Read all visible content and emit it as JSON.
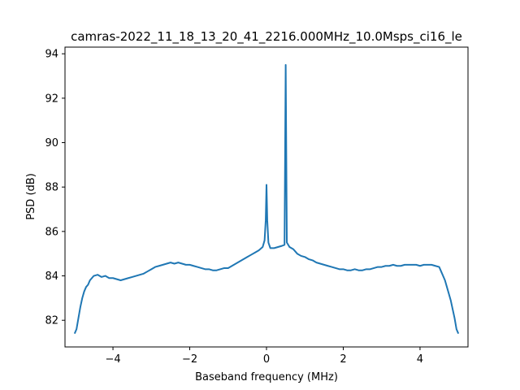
{
  "chart_data": {
    "type": "line",
    "title": "camras-2022_11_18_13_20_41_2216.000MHz_10.0Msps_ci16_le",
    "xlabel": "Baseband frequency (MHz)",
    "ylabel": "PSD (dB)",
    "xlim": [
      -5.25,
      5.25
    ],
    "ylim": [
      80.8,
      94.3
    ],
    "xticks": [
      -4,
      -2,
      0,
      2,
      4
    ],
    "xtick_labels": [
      "−4",
      "−2",
      "0",
      "2",
      "4"
    ],
    "yticks": [
      82,
      84,
      86,
      88,
      90,
      92,
      94
    ],
    "ytick_labels": [
      "82",
      "84",
      "86",
      "88",
      "90",
      "92",
      "94"
    ],
    "grid": false,
    "legend": false,
    "line_color": "#1f77b4",
    "series": [
      {
        "x": [
          -5.0,
          -4.95,
          -4.9,
          -4.85,
          -4.8,
          -4.75,
          -4.7,
          -4.65,
          -4.6,
          -4.55,
          -4.5,
          -4.4,
          -4.3,
          -4.2,
          -4.1,
          -4.0,
          -3.9,
          -3.8,
          -3.7,
          -3.6,
          -3.5,
          -3.4,
          -3.3,
          -3.2,
          -3.1,
          -3.0,
          -2.9,
          -2.8,
          -2.7,
          -2.6,
          -2.5,
          -2.4,
          -2.3,
          -2.2,
          -2.1,
          -2.0,
          -1.9,
          -1.8,
          -1.7,
          -1.6,
          -1.5,
          -1.4,
          -1.3,
          -1.2,
          -1.1,
          -1.0,
          -0.9,
          -0.8,
          -0.7,
          -0.6,
          -0.5,
          -0.4,
          -0.3,
          -0.2,
          -0.1,
          -0.05,
          -0.02,
          0.0,
          0.02,
          0.05,
          0.1,
          0.2,
          0.3,
          0.4,
          0.47,
          0.5,
          0.53,
          0.6,
          0.7,
          0.8,
          0.9,
          1.0,
          1.1,
          1.2,
          1.3,
          1.4,
          1.5,
          1.6,
          1.7,
          1.8,
          1.9,
          2.0,
          2.1,
          2.2,
          2.3,
          2.4,
          2.5,
          2.6,
          2.7,
          2.8,
          2.9,
          3.0,
          3.1,
          3.2,
          3.3,
          3.4,
          3.5,
          3.6,
          3.7,
          3.8,
          3.9,
          4.0,
          4.1,
          4.2,
          4.3,
          4.4,
          4.5,
          4.55,
          4.6,
          4.65,
          4.7,
          4.75,
          4.8,
          4.85,
          4.9,
          4.95,
          5.0
        ],
        "y": [
          81.4,
          81.6,
          82.1,
          82.6,
          83.0,
          83.3,
          83.5,
          83.6,
          83.8,
          83.9,
          84.0,
          84.05,
          83.95,
          84.0,
          83.9,
          83.9,
          83.85,
          83.8,
          83.85,
          83.9,
          83.95,
          84.0,
          84.05,
          84.1,
          84.2,
          84.3,
          84.4,
          84.45,
          84.5,
          84.55,
          84.6,
          84.55,
          84.6,
          84.55,
          84.5,
          84.5,
          84.45,
          84.4,
          84.35,
          84.3,
          84.3,
          84.25,
          84.25,
          84.3,
          84.35,
          84.35,
          84.45,
          84.55,
          84.65,
          84.75,
          84.85,
          84.95,
          85.05,
          85.15,
          85.3,
          85.6,
          86.5,
          88.1,
          86.5,
          85.5,
          85.25,
          85.25,
          85.3,
          85.35,
          85.4,
          93.5,
          85.5,
          85.3,
          85.2,
          85.0,
          84.9,
          84.85,
          84.75,
          84.7,
          84.6,
          84.55,
          84.5,
          84.45,
          84.4,
          84.35,
          84.3,
          84.3,
          84.25,
          84.25,
          84.3,
          84.25,
          84.25,
          84.3,
          84.3,
          84.35,
          84.4,
          84.4,
          84.45,
          84.45,
          84.5,
          84.45,
          84.45,
          84.5,
          84.5,
          84.5,
          84.5,
          84.45,
          84.5,
          84.5,
          84.5,
          84.45,
          84.4,
          84.2,
          84.0,
          83.8,
          83.5,
          83.2,
          82.9,
          82.5,
          82.1,
          81.6,
          81.4
        ]
      }
    ]
  }
}
